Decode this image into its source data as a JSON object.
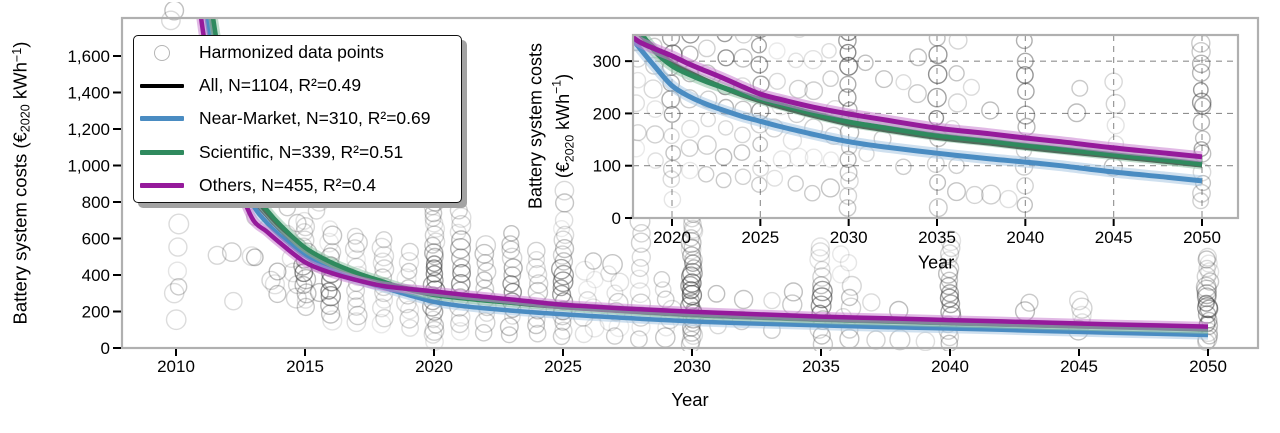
{
  "chart_data": {
    "type": "scatter",
    "main_axes": {
      "xlabel": "Year",
      "ylabel_parts": {
        "pre": "Battery system costs (€",
        "sub": "2020",
        "mid": " kWh",
        "sup": "−1",
        "post": ")"
      },
      "x_ticks": [
        2010,
        2015,
        2020,
        2025,
        2030,
        2035,
        2040,
        2045,
        2050
      ],
      "y_ticks": [
        0,
        200,
        400,
        600,
        800,
        1000,
        1200,
        1400,
        1600
      ],
      "y_tick_labels": [
        "0",
        "200",
        "400",
        "600",
        "800",
        "1,000",
        "1,200",
        "1,400",
        "1,600"
      ],
      "x_range": [
        2007.9,
        2051.9
      ],
      "y_range": [
        0,
        1808
      ],
      "grid": false
    },
    "inset_axes": {
      "xlabel": "Year",
      "ylabel_line1": "Battery system costs",
      "ylabel_line2_parts": {
        "pre": "(€",
        "sub": "2020",
        "mid": " kWh",
        "sup": "−1",
        "post": ")"
      },
      "x_ticks": [
        2020,
        2025,
        2030,
        2035,
        2040,
        2045,
        2050
      ],
      "y_ticks": [
        0,
        100,
        200,
        300
      ],
      "y_tick_labels": [
        "0",
        "100",
        "200",
        "300"
      ],
      "x_range": [
        2017.8,
        2052.0
      ],
      "y_range": [
        0,
        350
      ],
      "grid": true
    },
    "legend": {
      "items": [
        {
          "label": "Harmonized data points",
          "marker": "circle",
          "color": "#b5b5b5"
        },
        {
          "label": "All, N=1104, R²=0.49",
          "marker": "line",
          "color": "#000000"
        },
        {
          "label": "Near-Market, N=310, R²=0.69",
          "marker": "line",
          "color": "#4a8cc2"
        },
        {
          "label": "Scientific, N=339, R²=0.51",
          "marker": "line",
          "color": "#2f8a5e"
        },
        {
          "label": "Others, N=455, R²=0.4",
          "marker": "line",
          "color": "#951a9b"
        }
      ]
    },
    "fit_x_years": [
      2010.5,
      2011,
      2011.5,
      2012,
      2012.5,
      2013,
      2013.5,
      2014,
      2015,
      2016,
      2017,
      2018,
      2019,
      2020,
      2021,
      2022,
      2023,
      2024,
      2025,
      2026,
      2028,
      2030,
      2032,
      2035,
      2038,
      2040,
      2042,
      2045,
      2048,
      2050
    ],
    "series": [
      {
        "name": "All",
        "color": "#000000",
        "band": false,
        "band_color": "#9a9a9a",
        "y": [
          2900,
          2150,
          1650,
          1280,
          1010,
          820,
          730,
          655,
          530,
          455,
          400,
          358,
          325,
          296,
          278,
          262,
          248,
          235,
          224,
          214,
          196,
          180,
          169,
          154,
          143,
          135,
          128,
          118,
          108,
          101
        ]
      },
      {
        "name": "Near-Market",
        "color": "#4a8cc2",
        "band": true,
        "band_color": "#a7c6e2",
        "y": [
          2700,
          2000,
          1550,
          1200,
          950,
          780,
          690,
          620,
          505,
          430,
          375,
          332,
          291,
          253,
          232,
          217,
          205,
          194,
          185,
          176,
          160,
          146,
          136,
          124,
          113,
          107,
          100,
          88,
          78,
          71
        ]
      },
      {
        "name": "Scientific",
        "color": "#2f8a5e",
        "band": true,
        "band_color": "#8fc3a6",
        "y": [
          3100,
          2280,
          1750,
          1350,
          1060,
          850,
          760,
          680,
          550,
          470,
          412,
          365,
          320,
          291,
          274,
          260,
          248,
          237,
          227,
          218,
          200,
          184,
          173,
          158,
          147,
          139,
          132,
          121,
          111,
          103
        ]
      },
      {
        "name": "Others",
        "color": "#951a9b",
        "band": true,
        "band_color": "#c97fd0",
        "y": [
          2400,
          1780,
          1380,
          1080,
          860,
          700,
          640,
          580,
          470,
          412,
          372,
          340,
          324,
          310,
          294,
          280,
          266,
          251,
          237,
          228,
          212,
          199,
          188,
          172,
          161,
          153,
          146,
          134,
          124,
          117
        ]
      }
    ],
    "scatter": {
      "marker_color": "#3f3f3f",
      "clusters": [
        {
          "year": 2009.9,
          "values": [
            1850,
            1795
          ]
        },
        {
          "year": 2010,
          "values": [
            680,
            555,
            420,
            340,
            305,
            160
          ]
        },
        {
          "year": 2011.6,
          "values": [
            505
          ]
        },
        {
          "year": 2012.3,
          "values": [
            530,
            255
          ]
        },
        {
          "year": 2013,
          "values": [
            715,
            505,
            495
          ]
        },
        {
          "year": 2013.8,
          "values": [
            420,
            375,
            345,
            298
          ]
        },
        {
          "year": 2014.5,
          "n": 8,
          "min": 280,
          "max": 760
        },
        {
          "year": 2015,
          "n": 14,
          "min": 230,
          "max": 700
        },
        {
          "year": 2015.5,
          "values": [
            805,
            755,
            470,
            300
          ]
        },
        {
          "year": 2016,
          "n": 13,
          "min": 150,
          "max": 660
        },
        {
          "year": 2017,
          "n": 12,
          "min": 140,
          "max": 620
        },
        {
          "year": 2018,
          "n": 12,
          "min": 130,
          "max": 590
        },
        {
          "year": 2019,
          "n": 10,
          "min": 110,
          "max": 520
        },
        {
          "year": 2020,
          "n": 26,
          "min": 40,
          "max": 800
        },
        {
          "year": 2021,
          "n": 16,
          "min": 90,
          "max": 760
        },
        {
          "year": 2022,
          "n": 11,
          "min": 90,
          "max": 560
        },
        {
          "year": 2023,
          "n": 13,
          "min": 80,
          "max": 620
        },
        {
          "year": 2024,
          "n": 11,
          "min": 70,
          "max": 540
        },
        {
          "year": 2025,
          "n": 18,
          "min": 60,
          "max": 700
        },
        {
          "year": 2025.1,
          "values": [
            790,
            860
          ]
        },
        {
          "year": 2026,
          "n": 9,
          "min": 70,
          "max": 470
        },
        {
          "year": 2027,
          "n": 9,
          "min": 60,
          "max": 450
        },
        {
          "year": 2028,
          "n": 11,
          "min": 50,
          "max": 700
        },
        {
          "year": 2029,
          "n": 7,
          "min": 50,
          "max": 380
        },
        {
          "year": 2030,
          "n": 30,
          "min": 15,
          "max": 730
        },
        {
          "year": 2031,
          "values": [
            300,
            120
          ]
        },
        {
          "year": 2032,
          "values": [
            270,
            150
          ]
        },
        {
          "year": 2033,
          "values": [
            255,
            95
          ]
        },
        {
          "year": 2034,
          "values": [
            310,
            240
          ]
        },
        {
          "year": 2035,
          "n": 14,
          "min": 20,
          "max": 560
        },
        {
          "year": 2036,
          "n": 9,
          "min": 45,
          "max": 520
        },
        {
          "year": 2037,
          "values": [
            40,
            250
          ]
        },
        {
          "year": 2038,
          "values": [
            45,
            210
          ]
        },
        {
          "year": 2039,
          "values": [
            40
          ]
        },
        {
          "year": 2040,
          "n": 17,
          "min": 30,
          "max": 580
        },
        {
          "year": 2043,
          "values": [
            245,
            205
          ]
        },
        {
          "year": 2045,
          "values": [
            260,
            220,
            175,
            145,
            100
          ]
        },
        {
          "year": 2050,
          "n": 22,
          "min": 25,
          "max": 500
        }
      ]
    },
    "frame_color": "#b0b0b0",
    "grid_color": "#8f8f8f"
  }
}
